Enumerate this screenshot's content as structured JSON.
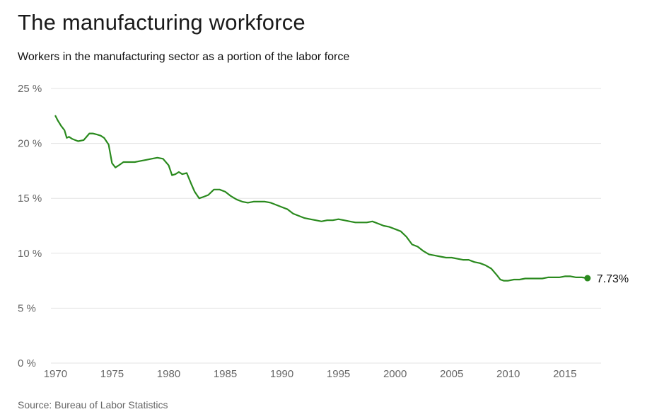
{
  "chart_data": {
    "type": "line",
    "title": "The manufacturing workforce",
    "subtitle": "Workers in the manufacturing sector as a portion of the labor force",
    "source": "Source: Bureau of Labor Statistics",
    "xlabel": "",
    "ylabel": "",
    "xlim": [
      1969.6,
      2018.2
    ],
    "ylim": [
      0,
      25
    ],
    "x_ticks": [
      1970,
      1975,
      1980,
      1985,
      1990,
      1995,
      2000,
      2005,
      2010,
      2015
    ],
    "y_ticks": [
      0,
      5,
      10,
      15,
      20,
      25
    ],
    "y_tick_labels": [
      "0 %",
      "5 %",
      "10 %",
      "15 %",
      "20 %",
      "25 %"
    ],
    "grid": true,
    "line_color": "#2a8a1e",
    "end_label": "7.73%",
    "series": [
      {
        "x": [
          1970.0,
          1970.2,
          1970.5,
          1970.8,
          1971.0,
          1971.2,
          1971.5,
          1972.0,
          1972.5,
          1973.0,
          1973.3,
          1973.7,
          1974.0,
          1974.3,
          1974.7,
          1975.0,
          1975.3,
          1975.6,
          1976.0,
          1976.5,
          1977.0,
          1977.5,
          1978.0,
          1978.5,
          1979.0,
          1979.5,
          1980.0,
          1980.3,
          1980.6,
          1980.9,
          1981.2,
          1981.6,
          1982.0,
          1982.3,
          1982.7,
          1983.0,
          1983.5,
          1984.0,
          1984.5,
          1985.0,
          1985.5,
          1986.0,
          1986.5,
          1987.0,
          1987.5,
          1988.0,
          1988.5,
          1989.0,
          1989.5,
          1990.0,
          1990.5,
          1991.0,
          1991.5,
          1992.0,
          1992.5,
          1993.0,
          1993.5,
          1994.0,
          1994.5,
          1995.0,
          1995.5,
          1996.0,
          1996.5,
          1997.0,
          1997.5,
          1998.0,
          1998.5,
          1999.0,
          1999.5,
          2000.0,
          2000.5,
          2001.0,
          2001.5,
          2002.0,
          2002.5,
          2003.0,
          2003.5,
          2004.0,
          2004.5,
          2005.0,
          2005.5,
          2006.0,
          2006.5,
          2007.0,
          2007.5,
          2008.0,
          2008.5,
          2009.0,
          2009.3,
          2009.6,
          2010.0,
          2010.5,
          2011.0,
          2011.5,
          2012.0,
          2012.5,
          2013.0,
          2013.5,
          2014.0,
          2014.5,
          2015.0,
          2015.5,
          2016.0,
          2016.5,
          2017.0
        ],
        "y": [
          22.5,
          22.1,
          21.6,
          21.2,
          20.5,
          20.6,
          20.4,
          20.2,
          20.3,
          20.9,
          20.9,
          20.8,
          20.7,
          20.5,
          19.9,
          18.2,
          17.8,
          18.0,
          18.3,
          18.3,
          18.3,
          18.4,
          18.5,
          18.6,
          18.7,
          18.6,
          18.0,
          17.1,
          17.2,
          17.4,
          17.2,
          17.3,
          16.3,
          15.6,
          15.0,
          15.1,
          15.3,
          15.8,
          15.8,
          15.6,
          15.2,
          14.9,
          14.7,
          14.6,
          14.7,
          14.7,
          14.7,
          14.6,
          14.4,
          14.2,
          14.0,
          13.6,
          13.4,
          13.2,
          13.1,
          13.0,
          12.9,
          13.0,
          13.0,
          13.1,
          13.0,
          12.9,
          12.8,
          12.8,
          12.8,
          12.9,
          12.7,
          12.5,
          12.4,
          12.2,
          12.0,
          11.5,
          10.8,
          10.6,
          10.2,
          9.9,
          9.8,
          9.7,
          9.6,
          9.6,
          9.5,
          9.4,
          9.4,
          9.2,
          9.1,
          8.9,
          8.6,
          8.0,
          7.6,
          7.5,
          7.5,
          7.6,
          7.6,
          7.7,
          7.7,
          7.7,
          7.7,
          7.8,
          7.8,
          7.8,
          7.9,
          7.9,
          7.8,
          7.8,
          7.73
        ]
      }
    ]
  }
}
